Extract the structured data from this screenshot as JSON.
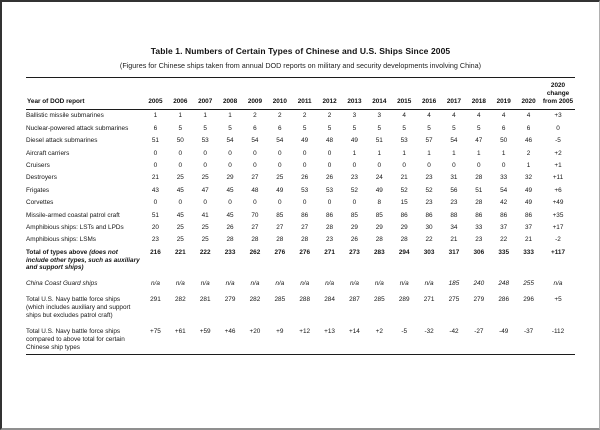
{
  "page": {
    "title": "Table 1. Numbers of Certain Types of Chinese and U.S. Ships Since 2005",
    "subtitle": "(Figures for Chinese ships taken from annual DOD reports on military and security developments involving China)"
  },
  "table": {
    "header_label": "Year of DOD report",
    "columns": [
      "2005",
      "2006",
      "2007",
      "2008",
      "2009",
      "2010",
      "2011",
      "2012",
      "2013",
      "2014",
      "2015",
      "2016",
      "2017",
      "2018",
      "2019",
      "2020",
      "2020 change from 2005"
    ],
    "rows": [
      {
        "label": "Ballistic missile submarines",
        "values": [
          "1",
          "1",
          "1",
          "1",
          "2",
          "2",
          "2",
          "2",
          "3",
          "3",
          "4",
          "4",
          "4",
          "4",
          "4",
          "4",
          "+3"
        ]
      },
      {
        "label": "Nuclear-powered attack submarines",
        "values": [
          "6",
          "5",
          "5",
          "5",
          "6",
          "6",
          "5",
          "5",
          "5",
          "5",
          "5",
          "5",
          "5",
          "5",
          "6",
          "6",
          "0"
        ]
      },
      {
        "label": "Diesel attack submarines",
        "values": [
          "51",
          "50",
          "53",
          "54",
          "54",
          "54",
          "49",
          "48",
          "49",
          "51",
          "53",
          "57",
          "54",
          "47",
          "50",
          "46",
          "-5"
        ]
      },
      {
        "label": "Aircraft carriers",
        "values": [
          "0",
          "0",
          "0",
          "0",
          "0",
          "0",
          "0",
          "0",
          "1",
          "1",
          "1",
          "1",
          "1",
          "1",
          "1",
          "2",
          "+2"
        ]
      },
      {
        "label": "Cruisers",
        "values": [
          "0",
          "0",
          "0",
          "0",
          "0",
          "0",
          "0",
          "0",
          "0",
          "0",
          "0",
          "0",
          "0",
          "0",
          "0",
          "1",
          "+1"
        ]
      },
      {
        "label": "Destroyers",
        "values": [
          "21",
          "25",
          "25",
          "29",
          "27",
          "25",
          "26",
          "26",
          "23",
          "24",
          "21",
          "23",
          "31",
          "28",
          "33",
          "32",
          "+11"
        ]
      },
      {
        "label": "Frigates",
        "values": [
          "43",
          "45",
          "47",
          "45",
          "48",
          "49",
          "53",
          "53",
          "52",
          "49",
          "52",
          "52",
          "56",
          "51",
          "54",
          "49",
          "+6"
        ]
      },
      {
        "label": "Corvettes",
        "values": [
          "0",
          "0",
          "0",
          "0",
          "0",
          "0",
          "0",
          "0",
          "0",
          "8",
          "15",
          "23",
          "23",
          "28",
          "42",
          "49",
          "+49"
        ]
      },
      {
        "label": "Missile-armed coastal patrol craft",
        "values": [
          "51",
          "45",
          "41",
          "45",
          "70",
          "85",
          "86",
          "86",
          "85",
          "85",
          "86",
          "86",
          "88",
          "86",
          "86",
          "86",
          "+35"
        ]
      },
      {
        "label": "Amphibious ships: LSTs and LPDs",
        "values": [
          "20",
          "25",
          "25",
          "26",
          "27",
          "27",
          "27",
          "28",
          "29",
          "29",
          "29",
          "30",
          "34",
          "33",
          "37",
          "37",
          "+17"
        ]
      },
      {
        "label": "Amphibious ships: LSMs",
        "values": [
          "23",
          "25",
          "25",
          "28",
          "28",
          "28",
          "28",
          "23",
          "26",
          "28",
          "28",
          "22",
          "21",
          "23",
          "22",
          "21",
          "-2"
        ]
      },
      {
        "label": "Total of types above ",
        "label_note": "(does not include other types, such as auxiliary and support ships)",
        "style": "bold",
        "values": [
          "216",
          "221",
          "222",
          "233",
          "262",
          "276",
          "276",
          "271",
          "273",
          "283",
          "294",
          "303",
          "317",
          "306",
          "335",
          "333",
          "+117"
        ]
      },
      {
        "label": "China Coast Guard ships",
        "style": "italic",
        "gap": true,
        "values": [
          "n/a",
          "n/a",
          "n/a",
          "n/a",
          "n/a",
          "n/a",
          "n/a",
          "n/a",
          "n/a",
          "n/a",
          "n/a",
          "n/a",
          "185",
          "240",
          "248",
          "255",
          "n/a"
        ]
      },
      {
        "label": "Total U.S. Navy battle force ships (which includes auxiliary and support ships but excludes patrol craft)",
        "gap": true,
        "values": [
          "291",
          "282",
          "281",
          "279",
          "282",
          "285",
          "288",
          "284",
          "287",
          "285",
          "289",
          "271",
          "275",
          "279",
          "286",
          "296",
          "+5"
        ]
      },
      {
        "label": "Total U.S. Navy battle force ships compared to above total for certain Chinese ship types",
        "gap": true,
        "values": [
          "+75",
          "+61",
          "+59",
          "+46",
          "+20",
          "+9",
          "+12",
          "+13",
          "+14",
          "+2",
          "-5",
          "-32",
          "-42",
          "-27",
          "-49",
          "-37",
          "-112"
        ]
      }
    ]
  }
}
